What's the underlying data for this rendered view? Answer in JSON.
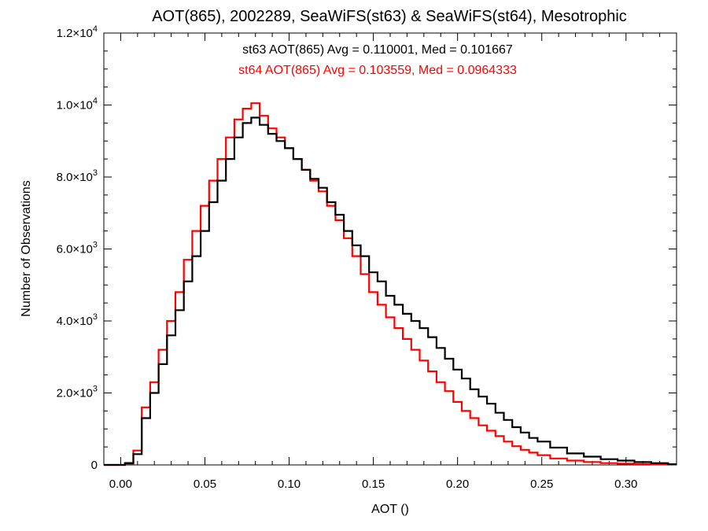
{
  "chart_data": {
    "type": "line",
    "title": "AOT(865), 2002289, SeaWiFS(st63) & SeaWiFS(st64), Mesotrophic",
    "xlabel": "AOT ()",
    "ylabel": "Number of Observations",
    "xlim": [
      -0.01,
      0.33
    ],
    "ylim": [
      0,
      12000
    ],
    "x_ticks": [
      0.0,
      0.05,
      0.1,
      0.15,
      0.2,
      0.25,
      0.3
    ],
    "x_tick_labels": [
      "0.00",
      "0.05",
      "0.10",
      "0.15",
      "0.20",
      "0.25",
      "0.30"
    ],
    "y_ticks": [
      0,
      2000,
      4000,
      6000,
      8000,
      10000,
      12000
    ],
    "y_tick_labels": [
      {
        "mantissa": "0",
        "exp": ""
      },
      {
        "mantissa": "2.0×10",
        "exp": "3"
      },
      {
        "mantissa": "4.0×10",
        "exp": "3"
      },
      {
        "mantissa": "6.0×10",
        "exp": "3"
      },
      {
        "mantissa": "8.0×10",
        "exp": "3"
      },
      {
        "mantissa": "1.0×10",
        "exp": "4"
      },
      {
        "mantissa": "1.2×10",
        "exp": "4"
      }
    ],
    "grid": false,
    "legend_placement": "top-center",
    "series": [
      {
        "name": "st63",
        "color": "#000000",
        "annotation": "st63 AOT(865) Avg = 0.110001, Med = 0.101667",
        "x": [
          -0.01,
          0.0,
          0.005,
          0.01,
          0.015,
          0.02,
          0.025,
          0.03,
          0.035,
          0.04,
          0.045,
          0.05,
          0.055,
          0.06,
          0.065,
          0.07,
          0.075,
          0.08,
          0.085,
          0.09,
          0.095,
          0.1,
          0.105,
          0.11,
          0.115,
          0.12,
          0.125,
          0.13,
          0.135,
          0.14,
          0.145,
          0.15,
          0.155,
          0.16,
          0.165,
          0.17,
          0.175,
          0.18,
          0.185,
          0.19,
          0.195,
          0.2,
          0.205,
          0.21,
          0.215,
          0.22,
          0.225,
          0.23,
          0.235,
          0.24,
          0.245,
          0.25,
          0.26,
          0.27,
          0.28,
          0.29,
          0.3,
          0.31,
          0.32,
          0.33
        ],
        "y": [
          0,
          0,
          40,
          300,
          1300,
          2000,
          2800,
          3600,
          4300,
          5100,
          5800,
          6500,
          7300,
          7900,
          8500,
          9100,
          9500,
          9650,
          9450,
          9200,
          9000,
          8800,
          8500,
          8200,
          7950,
          7700,
          7300,
          6950,
          6500,
          6100,
          5800,
          5350,
          5100,
          4700,
          4450,
          4200,
          4000,
          3800,
          3550,
          3250,
          2950,
          2650,
          2400,
          2100,
          1900,
          1700,
          1450,
          1250,
          1050,
          900,
          750,
          650,
          480,
          320,
          230,
          160,
          120,
          80,
          50,
          20
        ]
      },
      {
        "name": "st64",
        "color": "#ff0000",
        "annotation": "st64 AOT(865) Avg = 0.103559, Med = 0.0964333",
        "x": [
          -0.01,
          0.0,
          0.005,
          0.01,
          0.015,
          0.02,
          0.025,
          0.03,
          0.035,
          0.04,
          0.045,
          0.05,
          0.055,
          0.06,
          0.065,
          0.07,
          0.075,
          0.08,
          0.085,
          0.09,
          0.095,
          0.1,
          0.105,
          0.11,
          0.115,
          0.12,
          0.125,
          0.13,
          0.135,
          0.14,
          0.145,
          0.15,
          0.155,
          0.16,
          0.165,
          0.17,
          0.175,
          0.18,
          0.185,
          0.19,
          0.195,
          0.2,
          0.205,
          0.21,
          0.215,
          0.22,
          0.225,
          0.23,
          0.235,
          0.24,
          0.245,
          0.25,
          0.26,
          0.27,
          0.28,
          0.29,
          0.3,
          0.31,
          0.32,
          0.33
        ],
        "y": [
          0,
          0,
          60,
          400,
          1600,
          2300,
          3200,
          4000,
          4800,
          5700,
          6500,
          7200,
          7900,
          8500,
          9100,
          9600,
          9900,
          10050,
          9700,
          9350,
          9100,
          8800,
          8500,
          8200,
          7900,
          7600,
          7200,
          6800,
          6300,
          5800,
          5300,
          4800,
          4450,
          4100,
          3800,
          3500,
          3200,
          2900,
          2600,
          2300,
          2050,
          1750,
          1500,
          1300,
          1100,
          950,
          800,
          650,
          520,
          420,
          340,
          270,
          180,
          120,
          80,
          50,
          35,
          25,
          15,
          10
        ]
      }
    ]
  }
}
